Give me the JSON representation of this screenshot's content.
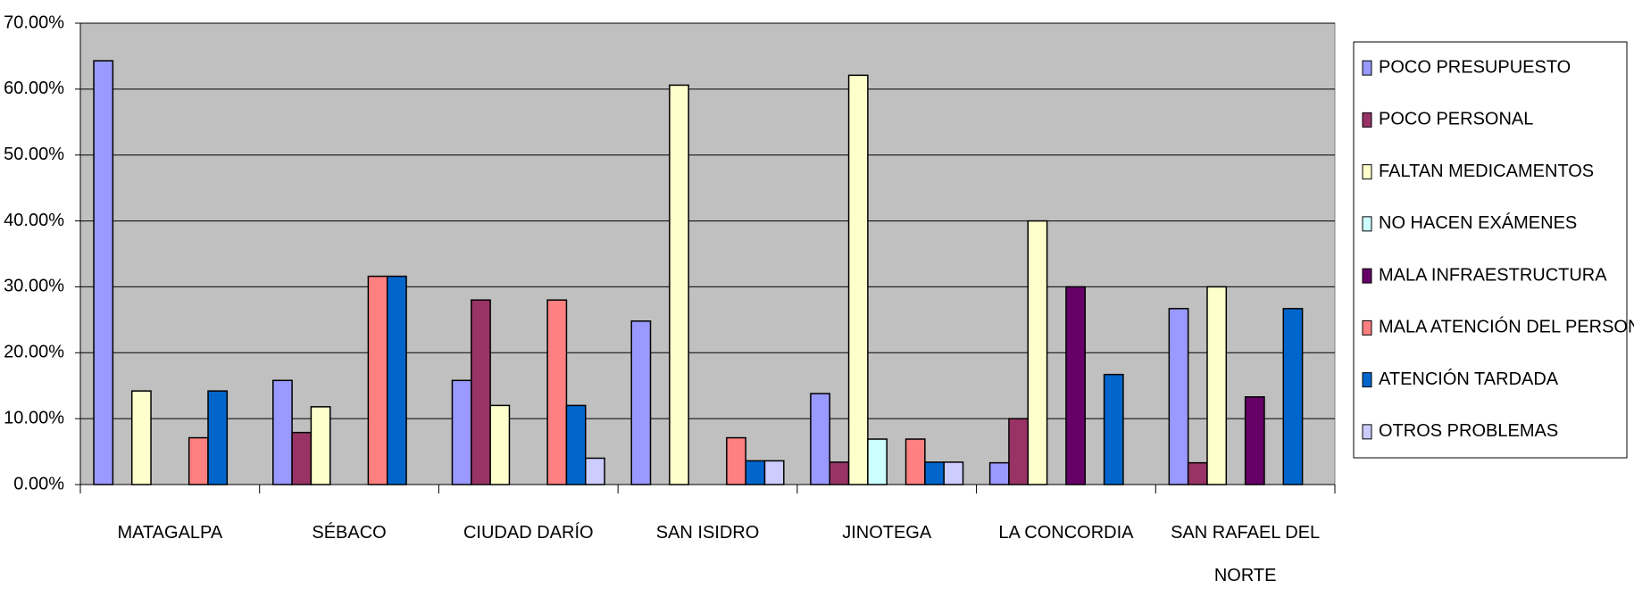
{
  "chart_data": {
    "type": "bar",
    "categories": [
      "MATAGALPA",
      "SÉBACO",
      "CIUDAD DARÍO",
      "SAN ISIDRO",
      "JINOTEGA",
      "LA CONCORDIA",
      "SAN RAFAEL DEL NORTE"
    ],
    "series": [
      {
        "name": "POCO PRESUPUESTO",
        "color": "#9999ff",
        "values": [
          64.3,
          15.8,
          15.8,
          24.8,
          13.8,
          3.3,
          26.7
        ]
      },
      {
        "name": "POCO PERSONAL",
        "color": "#993366",
        "values": [
          0,
          7.9,
          28,
          0,
          3.4,
          10,
          3.3
        ]
      },
      {
        "name": "FALTAN MEDICAMENTOS",
        "color": "#ffffcc",
        "values": [
          14.2,
          11.8,
          12,
          60.6,
          62.1,
          40,
          30
        ]
      },
      {
        "name": "NO HACEN EXÁMENES",
        "color": "#ccffff",
        "values": [
          0,
          0,
          0,
          0,
          6.9,
          0,
          0
        ]
      },
      {
        "name": "MALA INFRAESTRUCTURA",
        "color": "#660066",
        "values": [
          0,
          0,
          0,
          0,
          0,
          30,
          13.3
        ]
      },
      {
        "name": "MALA ATENCIÓN DEL PERSONAL",
        "color": "#ff8080",
        "values": [
          7.1,
          31.6,
          28,
          7.1,
          6.9,
          0,
          0
        ]
      },
      {
        "name": "ATENCIÓN TARDADA",
        "color": "#0066cc",
        "values": [
          14.2,
          31.6,
          12,
          3.6,
          3.4,
          16.7,
          26.7
        ]
      },
      {
        "name": "OTROS PROBLEMAS",
        "color": "#ccccff",
        "values": [
          0,
          0,
          4,
          3.6,
          3.4,
          0,
          0
        ]
      }
    ],
    "ylim": [
      0,
      70
    ],
    "yticks": [
      {
        "value": 0,
        "label": "0.00%"
      },
      {
        "value": 10,
        "label": "10.00%"
      },
      {
        "value": 20,
        "label": "20.00%"
      },
      {
        "value": 30,
        "label": "30.00%"
      },
      {
        "value": 40,
        "label": "40.00%"
      },
      {
        "value": 50,
        "label": "50.00%"
      },
      {
        "value": 60,
        "label": "60.00%"
      },
      {
        "value": 70,
        "label": "70.00%"
      }
    ],
    "grid": true,
    "legend": "right"
  }
}
